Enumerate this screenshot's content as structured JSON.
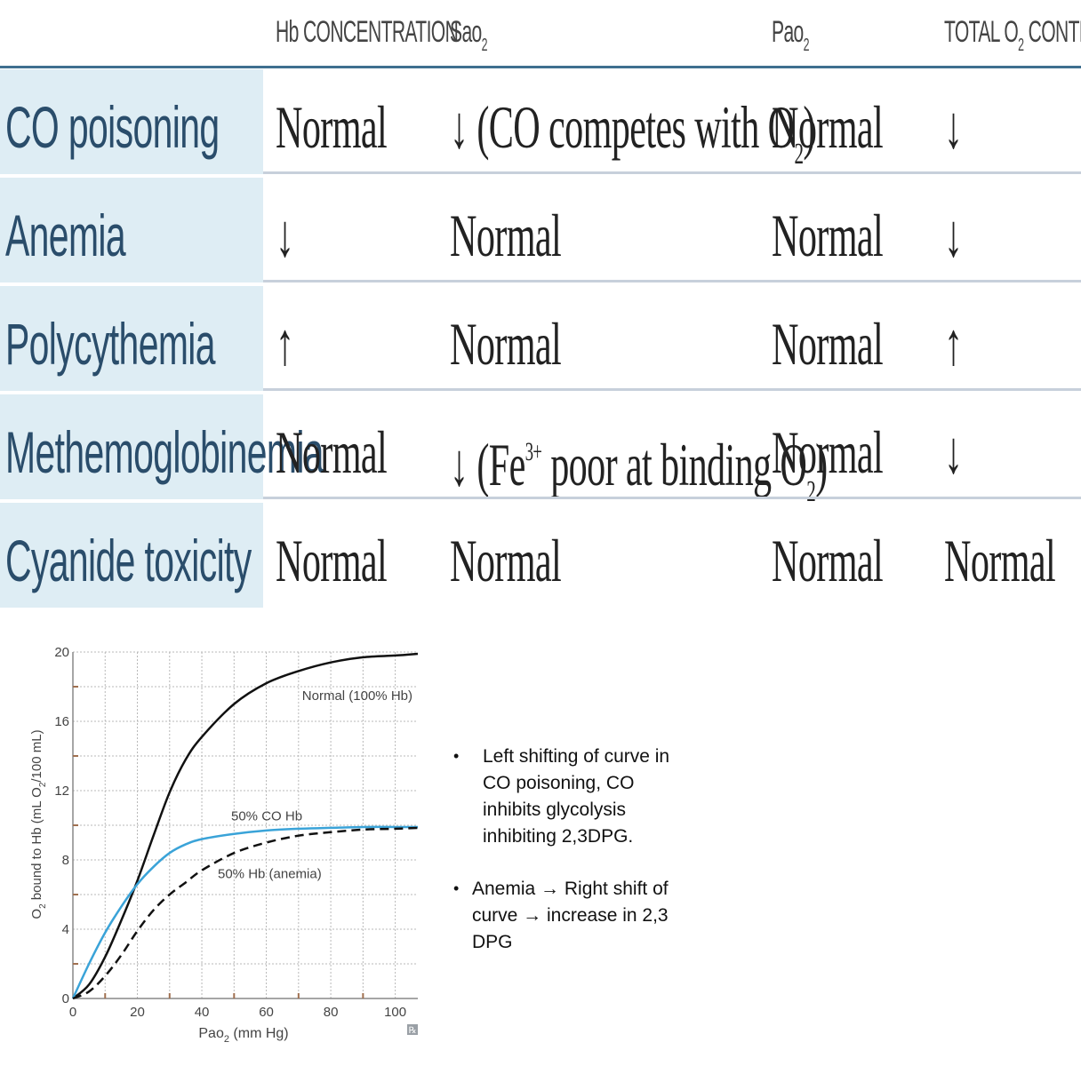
{
  "table": {
    "headers": {
      "hb": "Hb CONCENTRATION",
      "sao2": "Sao",
      "sao2_sub": "2",
      "pao2": "Pao",
      "pao2_sub": "2",
      "total_pre": "TOTAL O",
      "total_sub": "2",
      "total_post": " CONTENT"
    },
    "rows": [
      {
        "label": "CO poisoning",
        "hb": "Normal",
        "sao2_pre": "↓ (CO competes with O",
        "sao2_sub": "2",
        "sao2_post": ")",
        "pao2": "Normal",
        "total": "↓"
      },
      {
        "label": "Anemia",
        "hb": "↓",
        "sao2": "Normal",
        "pao2": "Normal",
        "total": "↓"
      },
      {
        "label": "Polycythemia",
        "hb": "↑",
        "sao2": "Normal",
        "pao2": "Normal",
        "total": "↑"
      },
      {
        "label": "Methemoglobinemia",
        "hb": "Normal",
        "sao2_pre": "↓ (Fe",
        "sao2_sup": "3+",
        "sao2_mid": " poor at binding O",
        "sao2_sub": "2",
        "sao2_post": ")",
        "pao2": "Normal",
        "total": "↓"
      },
      {
        "label": "Cyanide toxicity",
        "hb": "Normal",
        "sao2": "Normal",
        "pao2": "Normal",
        "total": "Normal"
      }
    ]
  },
  "chart_data": {
    "type": "line",
    "xlabel": "Pao",
    "xlabel_sub": "2",
    "xlabel_post": " (mm Hg)",
    "ylabel": "O",
    "ylabel_sub": "2",
    "ylabel_mid": " bound to Hb (mL O",
    "ylabel_sub2": "2",
    "ylabel_post": "/100 mL)",
    "xlim": [
      0,
      107
    ],
    "ylim": [
      0,
      20
    ],
    "xticks": [
      0,
      20,
      40,
      60,
      80,
      100
    ],
    "yticks": [
      0,
      4,
      8,
      12,
      16,
      20
    ],
    "grid": true,
    "series": [
      {
        "name": "Normal (100% Hb)",
        "style": "solid",
        "color": "#111111",
        "x": [
          0,
          5,
          10,
          15,
          20,
          25,
          30,
          35,
          40,
          50,
          60,
          70,
          80,
          90,
          100,
          107
        ],
        "y": [
          0,
          0.8,
          2.4,
          4.5,
          6.8,
          9.4,
          11.9,
          13.8,
          15.1,
          17.0,
          18.2,
          18.9,
          19.4,
          19.7,
          19.8,
          19.9
        ]
      },
      {
        "name": "50% CO Hb",
        "style": "solid",
        "color": "#3aa3d8",
        "x": [
          0,
          5,
          10,
          15,
          20,
          25,
          30,
          35,
          40,
          50,
          60,
          70,
          80,
          90,
          100,
          107
        ],
        "y": [
          0,
          2.0,
          3.8,
          5.3,
          6.6,
          7.6,
          8.4,
          8.9,
          9.2,
          9.5,
          9.7,
          9.8,
          9.85,
          9.9,
          9.9,
          9.9
        ]
      },
      {
        "name": "50% Hb (anemia)",
        "style": "dashed",
        "color": "#111111",
        "x": [
          0,
          5,
          10,
          15,
          20,
          25,
          30,
          35,
          40,
          50,
          60,
          70,
          80,
          90,
          100,
          107
        ],
        "y": [
          0,
          0.4,
          1.3,
          2.5,
          3.9,
          5.1,
          6.0,
          6.7,
          7.4,
          8.4,
          9.0,
          9.4,
          9.6,
          9.75,
          9.8,
          9.85
        ]
      }
    ]
  },
  "notes": {
    "bullet": "•",
    "note1": [
      "Left shifting of curve in",
      "CO poisoning,  CO",
      "inhibits glycolysis",
      "inhibiting 2,3DPG."
    ],
    "note2": [
      "Anemia → Right shift of",
      "curve → increase in 2,3",
      "DPG"
    ]
  }
}
